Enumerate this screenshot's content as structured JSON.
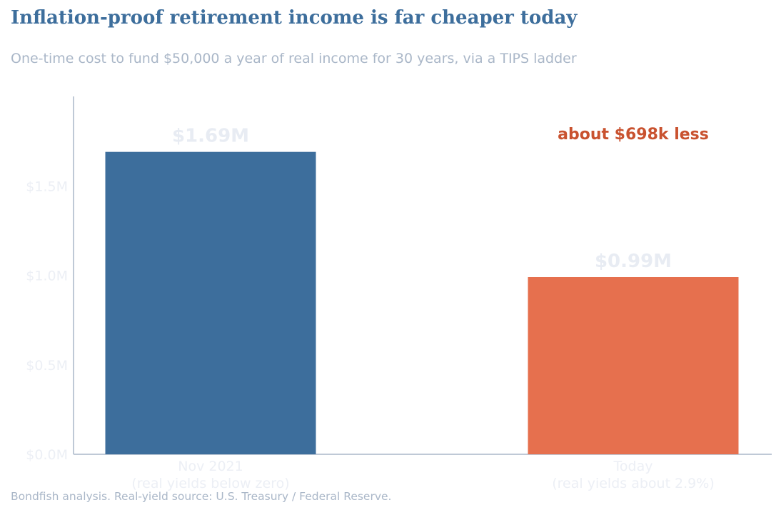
{
  "chart_data": {
    "type": "bar",
    "title": "Inflation-proof retirement income is far cheaper today",
    "subtitle": "One-time cost to fund $50,000 a year of real income for 30 years, via a TIPS ladder",
    "categories": [
      [
        "Nov 2021",
        "(real yields below zero)"
      ],
      [
        "Today",
        "(real yields about 2.9%)"
      ]
    ],
    "values": [
      1.69,
      0.99
    ],
    "value_labels": [
      "$1.69M",
      "$0.99M"
    ],
    "unit": "millions of dollars",
    "bar_colors": [
      "#3d6e9c",
      "#e6704e"
    ],
    "ylim": [
      0,
      2.0
    ],
    "yticks": [
      0.0,
      0.5,
      1.0,
      1.5
    ],
    "ytick_labels": [
      "$0.0M",
      "$0.5M",
      "$1.0M",
      "$1.5M"
    ],
    "annotation": "about $698k less",
    "annotation_color": "#c9522f",
    "grid": false,
    "source": "Bondfish analysis. Real-yield source: U.S. Treasury / Federal Reserve."
  }
}
